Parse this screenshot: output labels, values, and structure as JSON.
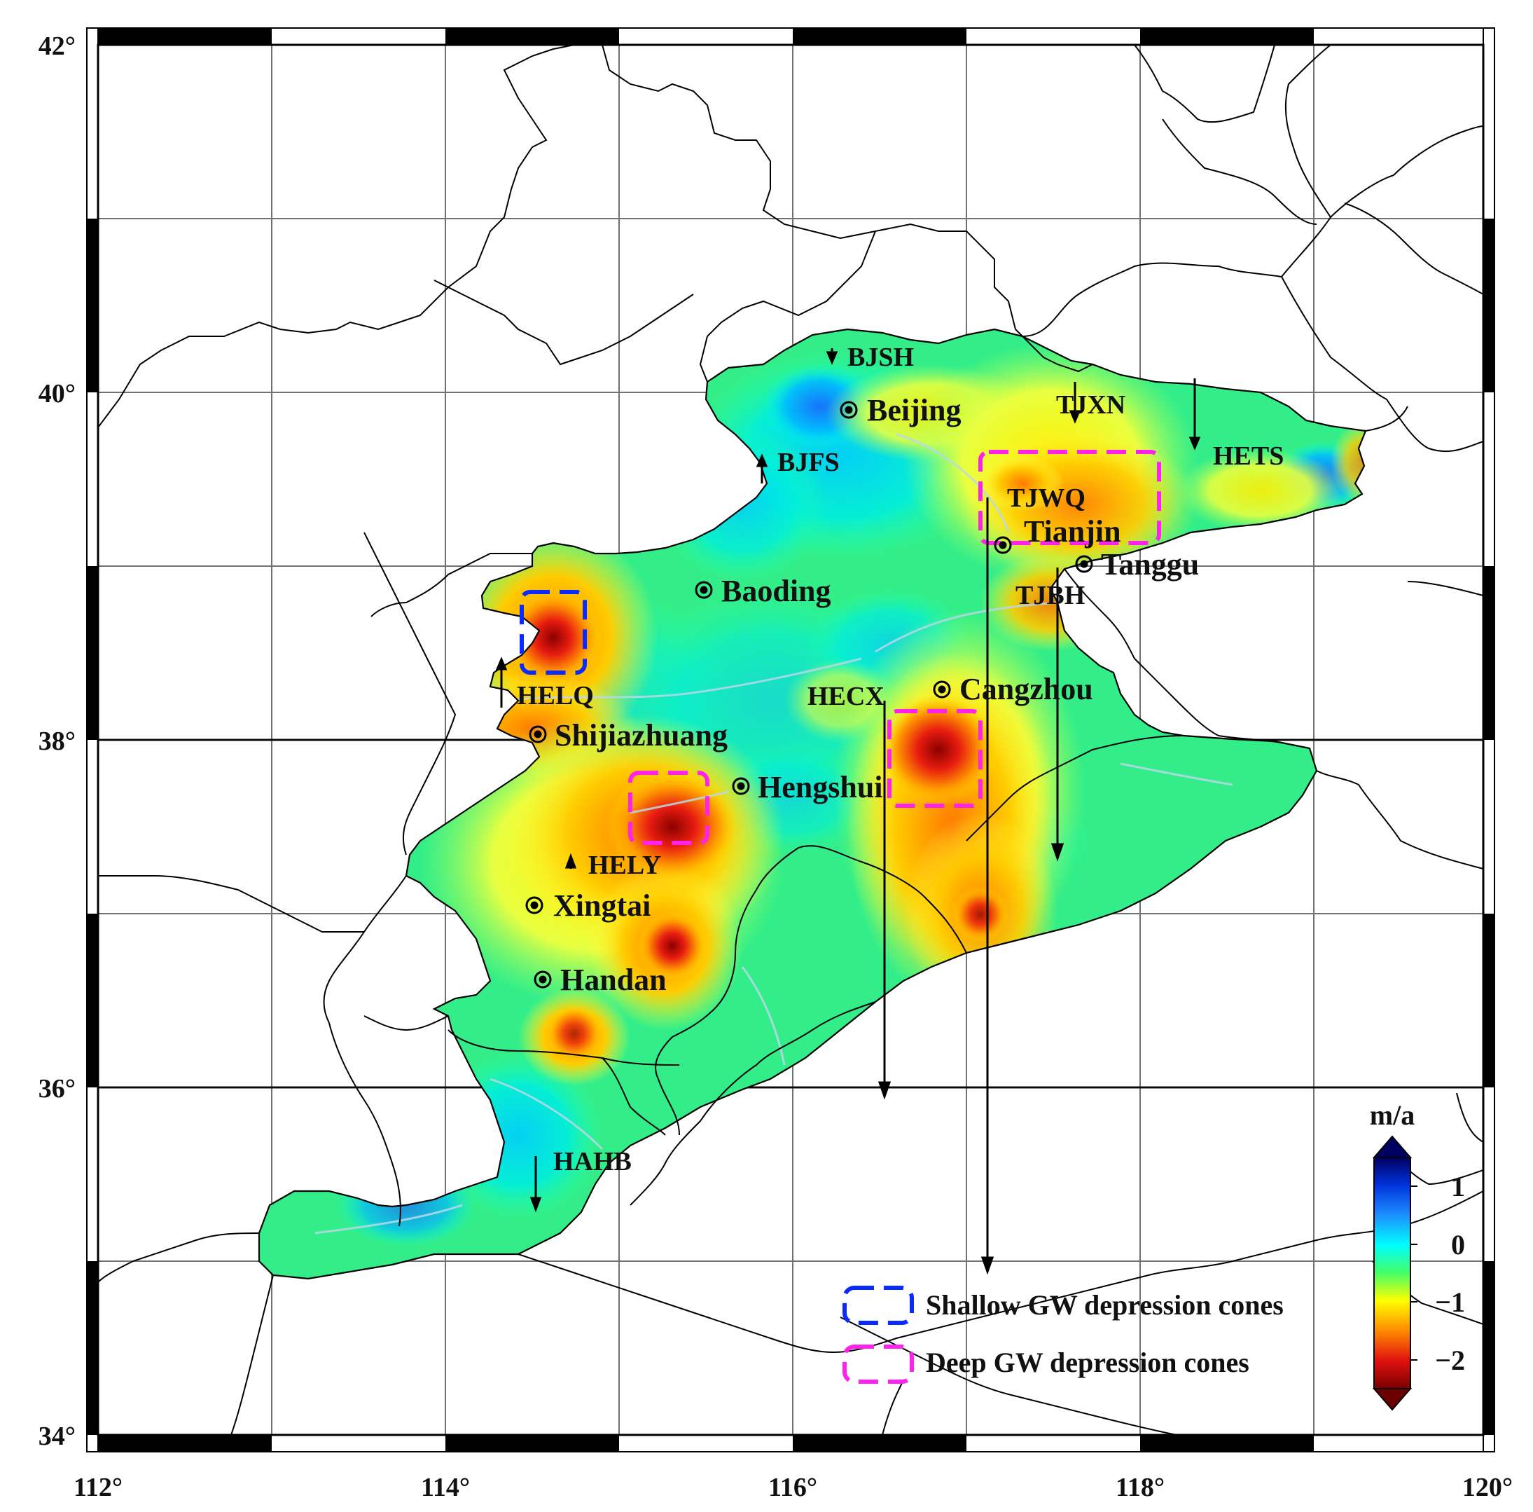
{
  "map": {
    "x_tick_labels": [
      "112°",
      "114°",
      "116°",
      "118°",
      "120°"
    ],
    "y_tick_labels": [
      "34°",
      "36°",
      "38°",
      "40°",
      "42°"
    ],
    "colorbar": {
      "unit": "m/a",
      "ticks": [
        "1",
        "0",
        "−1",
        "−2"
      ],
      "min": -2.5,
      "max": 1.5
    },
    "cities": [
      "Beijing",
      "Tianjin",
      "Tanggu",
      "Baoding",
      "Cangzhou",
      "Shijiazhuang",
      "Hengshui",
      "Xingtai",
      "Handan"
    ],
    "stations": [
      {
        "name": "BJSH",
        "direction": "down"
      },
      {
        "name": "BJFS",
        "direction": "up"
      },
      {
        "name": "TJXN",
        "direction": "down"
      },
      {
        "name": "HETS",
        "direction": "down"
      },
      {
        "name": "TJWQ",
        "direction": "down"
      },
      {
        "name": "TJBH",
        "direction": "down"
      },
      {
        "name": "HELQ",
        "direction": "up"
      },
      {
        "name": "HECX",
        "direction": "down"
      },
      {
        "name": "HELY",
        "direction": "up"
      },
      {
        "name": "HAHB",
        "direction": "down"
      }
    ],
    "legend": [
      {
        "label": "Shallow GW depression cones",
        "color": "#0a2bff"
      },
      {
        "label": "Deep GW depression cones",
        "color": "#ff22ee"
      }
    ]
  }
}
